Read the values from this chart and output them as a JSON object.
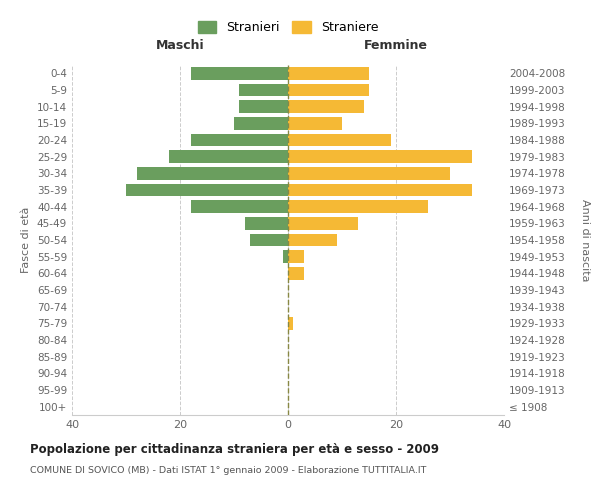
{
  "age_groups": [
    "100+",
    "95-99",
    "90-94",
    "85-89",
    "80-84",
    "75-79",
    "70-74",
    "65-69",
    "60-64",
    "55-59",
    "50-54",
    "45-49",
    "40-44",
    "35-39",
    "30-34",
    "25-29",
    "20-24",
    "15-19",
    "10-14",
    "5-9",
    "0-4"
  ],
  "birth_years": [
    "≤ 1908",
    "1909-1913",
    "1914-1918",
    "1919-1923",
    "1924-1928",
    "1929-1933",
    "1934-1938",
    "1939-1943",
    "1944-1948",
    "1949-1953",
    "1954-1958",
    "1959-1963",
    "1964-1968",
    "1969-1973",
    "1974-1978",
    "1979-1983",
    "1984-1988",
    "1989-1993",
    "1994-1998",
    "1999-2003",
    "2004-2008"
  ],
  "maschi": [
    0,
    0,
    0,
    0,
    0,
    0,
    0,
    0,
    0,
    1,
    7,
    8,
    18,
    30,
    28,
    22,
    18,
    10,
    9,
    9,
    18
  ],
  "femmine": [
    0,
    0,
    0,
    0,
    0,
    1,
    0,
    0,
    3,
    3,
    9,
    13,
    26,
    34,
    30,
    34,
    19,
    10,
    14,
    15,
    15
  ],
  "maschi_color": "#6a9e5e",
  "femmine_color": "#f5b935",
  "center_line_color": "#888844",
  "grid_color": "#cccccc",
  "title": "Popolazione per cittadinanza straniera per età e sesso - 2009",
  "subtitle": "COMUNE DI SOVICO (MB) - Dati ISTAT 1° gennaio 2009 - Elaborazione TUTTITALIA.IT",
  "xlabel_left": "Maschi",
  "xlabel_right": "Femmine",
  "ylabel_left": "Fasce di età",
  "ylabel_right": "Anni di nascita",
  "legend_maschi": "Stranieri",
  "legend_femmine": "Straniere",
  "xlim": 40,
  "background_color": "#ffffff"
}
